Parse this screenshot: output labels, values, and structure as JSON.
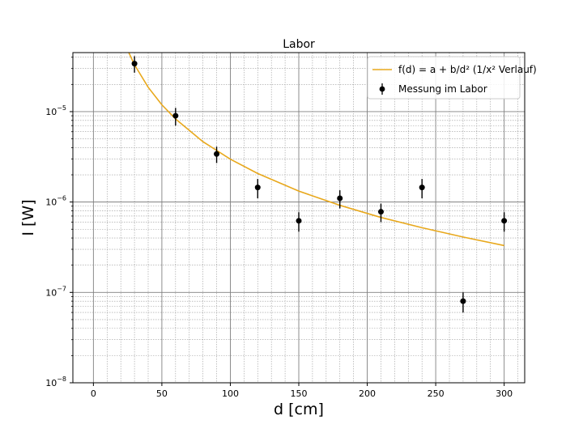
{
  "chart_data": {
    "type": "scatter",
    "title": "Labor",
    "xlabel": "d [cm]",
    "ylabel": "I [W]",
    "xlim": [
      -15,
      315
    ],
    "ylim": [
      1e-08,
      4.5e-05
    ],
    "y_scale": "log",
    "grid": "major and minor",
    "legend_position": "top-right",
    "x_ticks": [
      0,
      50,
      100,
      150,
      200,
      250,
      300
    ],
    "x_tick_labels": [
      "0",
      "50",
      "100",
      "150",
      "200",
      "250",
      "300"
    ],
    "y_ticks": [
      1e-08,
      1e-07,
      1e-06,
      1e-05
    ],
    "y_tick_labels": [
      {
        "base": "10",
        "exp": "−8"
      },
      {
        "base": "10",
        "exp": "−7"
      },
      {
        "base": "10",
        "exp": "−6"
      },
      {
        "base": "10",
        "exp": "−5"
      }
    ],
    "series": [
      {
        "name": "Messung im Labor",
        "kind": "errorbar",
        "color": "#000000",
        "x": [
          30,
          60,
          90,
          120,
          150,
          180,
          210,
          240,
          270,
          300
        ],
        "y": [
          3.4e-05,
          9e-06,
          3.4e-06,
          1.45e-06,
          6.2e-07,
          1.1e-06,
          7.8e-07,
          1.45e-06,
          8e-08,
          6.2e-07
        ],
        "y_err_low": [
          7e-06,
          2e-06,
          7e-07,
          3.5e-07,
          1.5e-07,
          2.5e-07,
          1.8e-07,
          3.5e-07,
          2e-08,
          1.5e-07
        ],
        "y_err_high": [
          7e-06,
          2e-06,
          7e-07,
          3.5e-07,
          1.5e-07,
          2.5e-07,
          1.8e-07,
          3.5e-07,
          2e-08,
          1.5e-07
        ]
      },
      {
        "name": "f(d) = a + b/d² (1/x² Verlauf)",
        "kind": "line",
        "color": "#e8a81c",
        "x": [
          20,
          25,
          30,
          40,
          50,
          60,
          80,
          100,
          120,
          150,
          180,
          210,
          240,
          270,
          300
        ],
        "y": [
          7.5e-05,
          4.8e-05,
          3.3e-05,
          1.86e-05,
          1.19e-05,
          8.3e-06,
          4.65e-06,
          2.98e-06,
          2.07e-06,
          1.32e-06,
          9.2e-07,
          6.75e-07,
          5.2e-07,
          4.1e-07,
          3.3e-07
        ]
      }
    ]
  }
}
